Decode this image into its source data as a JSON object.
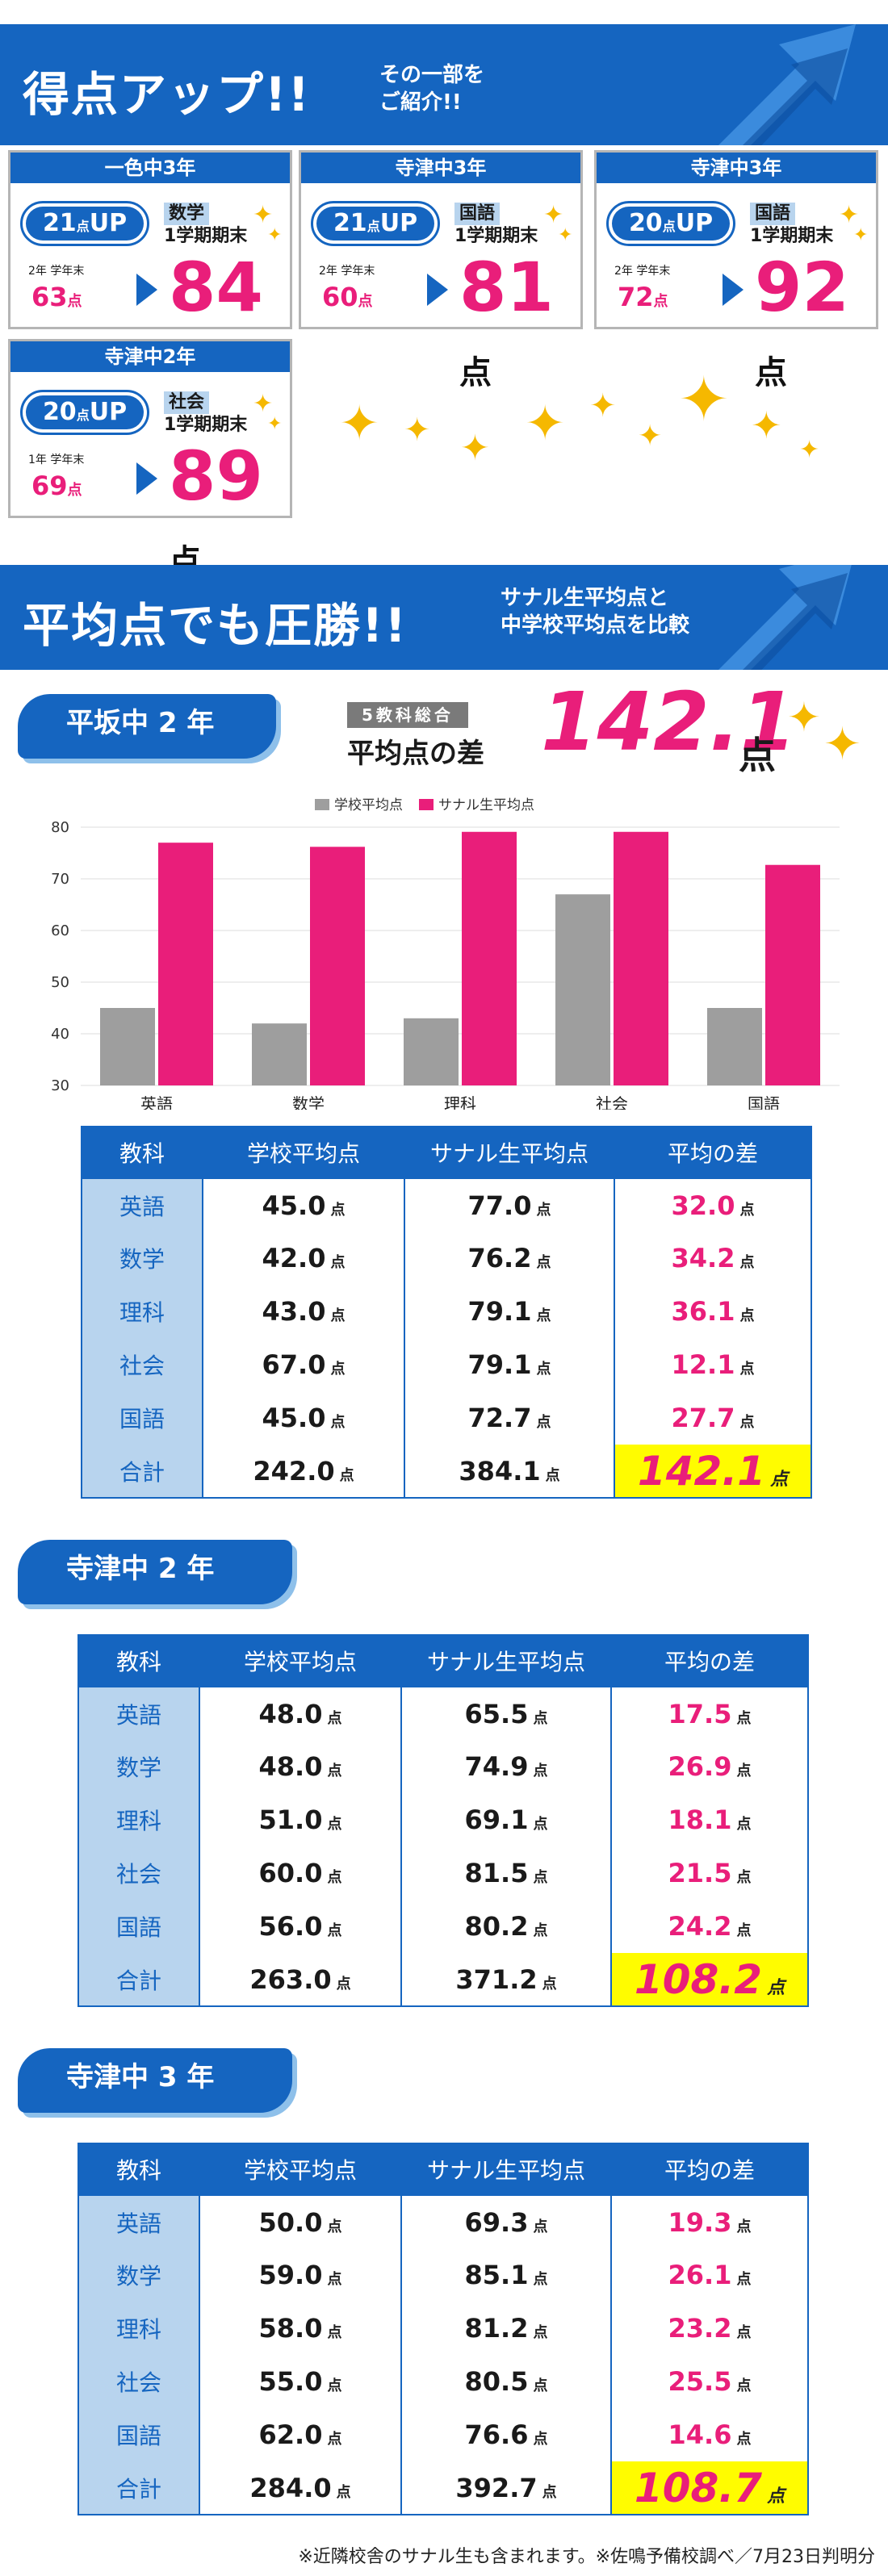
{
  "section1": {
    "title": "得点アップ!!",
    "subtitle_line1": "その一部を",
    "subtitle_line2": "ご紹介!!",
    "cards": [
      {
        "school": "一色中3年",
        "up": "21",
        "up_unit": "点",
        "up_label": "UP",
        "subject": "数学",
        "term": "1学期期末",
        "prev_label": "2年 学年末",
        "prev_score": "63",
        "new_score": "84",
        "unit": "点"
      },
      {
        "school": "寺津中3年",
        "up": "21",
        "up_unit": "点",
        "up_label": "UP",
        "subject": "国語",
        "term": "1学期期末",
        "prev_label": "2年 学年末",
        "prev_score": "60",
        "new_score": "81",
        "unit": "点"
      },
      {
        "school": "寺津中3年",
        "up": "20",
        "up_unit": "点",
        "up_label": "UP",
        "subject": "国語",
        "term": "1学期期末",
        "prev_label": "2年 学年末",
        "prev_score": "72",
        "new_score": "92",
        "unit": "点"
      },
      {
        "school": "寺津中2年",
        "up": "20",
        "up_unit": "点",
        "up_label": "UP",
        "subject": "社会",
        "term": "1学期期末",
        "prev_label": "1年 学年末",
        "prev_score": "69",
        "new_score": "89",
        "unit": "点"
      }
    ]
  },
  "section2": {
    "title": "平均点でも圧勝!!",
    "subtitle_line1": "サナル生平均点と",
    "subtitle_line2": "中学校平均点を比較"
  },
  "hirasaka": {
    "school": "平坂中 2 年",
    "sum_small": "5教科総合",
    "sum_big": "平均点の差",
    "sum_value": "142.1",
    "sum_unit": "点"
  },
  "chart_data": {
    "type": "bar",
    "categories": [
      "英語",
      "数学",
      "理科",
      "社会",
      "国語"
    ],
    "series": [
      {
        "name": "学校平均点",
        "values": [
          45,
          42,
          43,
          67,
          45
        ],
        "color": "#9e9e9e"
      },
      {
        "name": "サナル生平均点",
        "values": [
          77,
          76.2,
          79.1,
          79.1,
          72.7
        ],
        "color": "#e91e7a"
      }
    ],
    "ylim": [
      30,
      80
    ],
    "yticks": [
      30,
      40,
      50,
      60,
      70,
      80
    ],
    "grid": true,
    "legend": "top"
  },
  "table_headers": [
    "教科",
    "学校平均点",
    "サナル生平均点",
    "平均の差"
  ],
  "unit": "点",
  "tables": [
    {
      "rows": [
        {
          "subject": "英語",
          "school": "45.0",
          "sanaru": "77.0",
          "diff": "32.0"
        },
        {
          "subject": "数学",
          "school": "42.0",
          "sanaru": "76.2",
          "diff": "34.2"
        },
        {
          "subject": "理科",
          "school": "43.0",
          "sanaru": "79.1",
          "diff": "36.1"
        },
        {
          "subject": "社会",
          "school": "67.0",
          "sanaru": "79.1",
          "diff": "12.1"
        },
        {
          "subject": "国語",
          "school": "45.0",
          "sanaru": "72.7",
          "diff": "27.7"
        }
      ],
      "total": {
        "subject": "合計",
        "school": "242.0",
        "sanaru": "384.1",
        "diff": "142.1"
      }
    },
    {
      "school": "寺津中 2 年",
      "rows": [
        {
          "subject": "英語",
          "school": "48.0",
          "sanaru": "65.5",
          "diff": "17.5"
        },
        {
          "subject": "数学",
          "school": "48.0",
          "sanaru": "74.9",
          "diff": "26.9"
        },
        {
          "subject": "理科",
          "school": "51.0",
          "sanaru": "69.1",
          "diff": "18.1"
        },
        {
          "subject": "社会",
          "school": "60.0",
          "sanaru": "81.5",
          "diff": "21.5"
        },
        {
          "subject": "国語",
          "school": "56.0",
          "sanaru": "80.2",
          "diff": "24.2"
        }
      ],
      "total": {
        "subject": "合計",
        "school": "263.0",
        "sanaru": "371.2",
        "diff": "108.2"
      }
    },
    {
      "school": "寺津中 3 年",
      "rows": [
        {
          "subject": "英語",
          "school": "50.0",
          "sanaru": "69.3",
          "diff": "19.3"
        },
        {
          "subject": "数学",
          "school": "59.0",
          "sanaru": "85.1",
          "diff": "26.1"
        },
        {
          "subject": "理科",
          "school": "58.0",
          "sanaru": "81.2",
          "diff": "23.2"
        },
        {
          "subject": "社会",
          "school": "55.0",
          "sanaru": "80.5",
          "diff": "25.5"
        },
        {
          "subject": "国語",
          "school": "62.0",
          "sanaru": "76.6",
          "diff": "14.6"
        }
      ],
      "total": {
        "subject": "合計",
        "school": "284.0",
        "sanaru": "392.7",
        "diff": "108.7"
      }
    }
  ],
  "footnote": "※近隣校舎のサナル生も含まれます。※佐鳴予備校調べ／7月23日判明分",
  "colors": {
    "brand_blue": "#1565c0",
    "pink": "#e91e7a",
    "highlight": "#fffc00",
    "light_blue": "#b8d4ee",
    "gray": "#9e9e9e"
  }
}
